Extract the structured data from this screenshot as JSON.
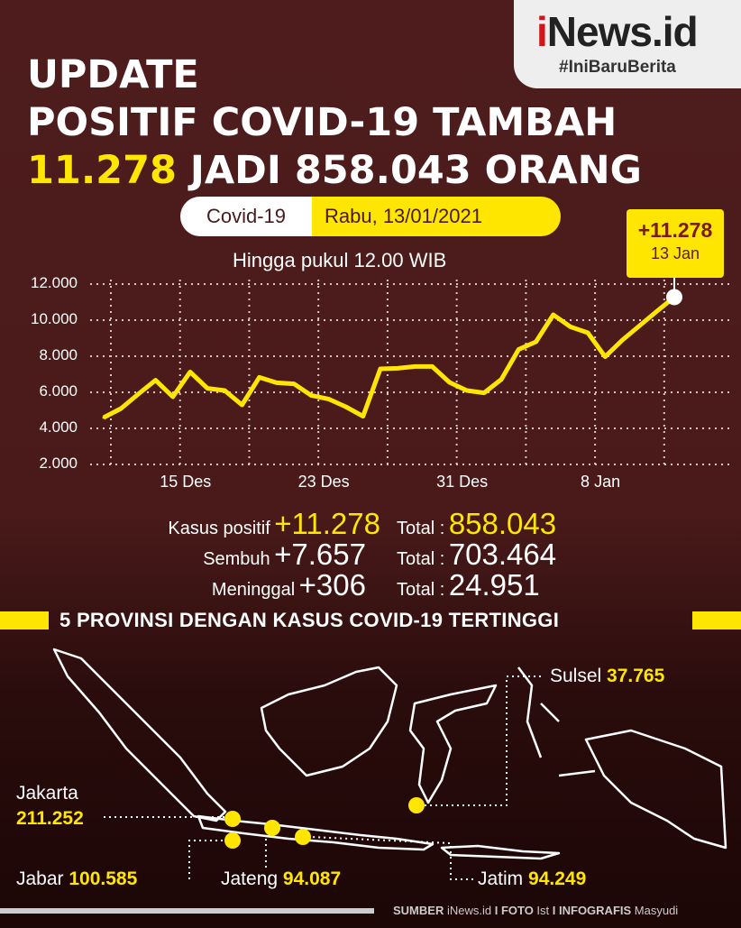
{
  "logo": {
    "brand_i": "i",
    "brand_rest": "News.id",
    "tagline": "#IniBaruBerita"
  },
  "title": {
    "line1": "UPDATE",
    "line2": "POSITIF COVID-19 TAMBAH",
    "line3_highlight": "11.278",
    "line3_rest": " JADI 858.043 ORANG"
  },
  "pill": {
    "label": "Covid-19",
    "date": "Rabu, 13/01/2021"
  },
  "subtitle": "Hingga pukul 12.00 WIB",
  "callout": {
    "value": "+11.278",
    "date": "13 Jan"
  },
  "chart_data": {
    "type": "line",
    "title": "",
    "xlabel": "",
    "ylabel": "",
    "ylim": [
      2000,
      12000
    ],
    "yticks": [
      "12.000",
      "10.000",
      "8.000",
      "6.000",
      "4.000",
      "2.000"
    ],
    "ytick_values": [
      12000,
      10000,
      8000,
      6000,
      4000,
      2000
    ],
    "xtick_labels": [
      {
        "label": "15 Des",
        "index": 4
      },
      {
        "label": "23 Des",
        "index": 12
      },
      {
        "label": "31 Des",
        "index": 20
      },
      {
        "label": "8 Jan",
        "index": 28
      }
    ],
    "grid": true,
    "line_color": "#ffe600",
    "x": [
      "11 Des",
      "12 Des",
      "13 Des",
      "14 Des",
      "15 Des",
      "16 Des",
      "17 Des",
      "18 Des",
      "19 Des",
      "20 Des",
      "21 Des",
      "22 Des",
      "23 Des",
      "24 Des",
      "25 Des",
      "26 Des",
      "27 Des",
      "28 Des",
      "29 Des",
      "30 Des",
      "31 Des",
      "1 Jan",
      "2 Jan",
      "3 Jan",
      "4 Jan",
      "5 Jan",
      "6 Jan",
      "7 Jan",
      "8 Jan",
      "9 Jan",
      "10 Jan",
      "11 Jan",
      "12 Jan",
      "13 Jan"
    ],
    "values": [
      4600,
      5100,
      5900,
      6670,
      5750,
      7130,
      6220,
      6100,
      5300,
      6830,
      6530,
      6470,
      5830,
      5630,
      5200,
      4670,
      7300,
      7330,
      7430,
      7430,
      6550,
      6100,
      5970,
      6720,
      8380,
      8800,
      10300,
      9630,
      9300,
      7970,
      8900,
      9700,
      10500,
      11278
    ]
  },
  "stats": [
    {
      "label": "Kasus positif",
      "delta": "+11.278",
      "total_label": "Total :",
      "total": "858.043"
    },
    {
      "label": "Sembuh",
      "delta": "+7.657",
      "total_label": "Total :",
      "total": "703.464"
    },
    {
      "label": "Meninggal",
      "delta": "+306",
      "total_label": "Total :",
      "total": "24.951"
    }
  ],
  "section_title": "5 PROVINSI DENGAN KASUS COVID-19 TERTINGGI",
  "provinces": [
    {
      "name": "Sulsel",
      "value": "37.765"
    },
    {
      "name": "Jakarta",
      "value": "211.252"
    },
    {
      "name": "Jabar",
      "value": "100.585"
    },
    {
      "name": "Jateng",
      "value": "94.087"
    },
    {
      "name": "Jatim",
      "value": "94.249"
    }
  ],
  "footer": {
    "s1": "SUMBER",
    "v1": " iNews.id ",
    "sep1": "I ",
    "s2": "FOTO",
    "v2": " Ist ",
    "sep2": "I ",
    "s3": "INFOGRAFIS",
    "v3": " Masyudi"
  },
  "colors": {
    "background": "#4e1c1c",
    "accent": "#ffe600",
    "brand_red": "#d0151b"
  }
}
